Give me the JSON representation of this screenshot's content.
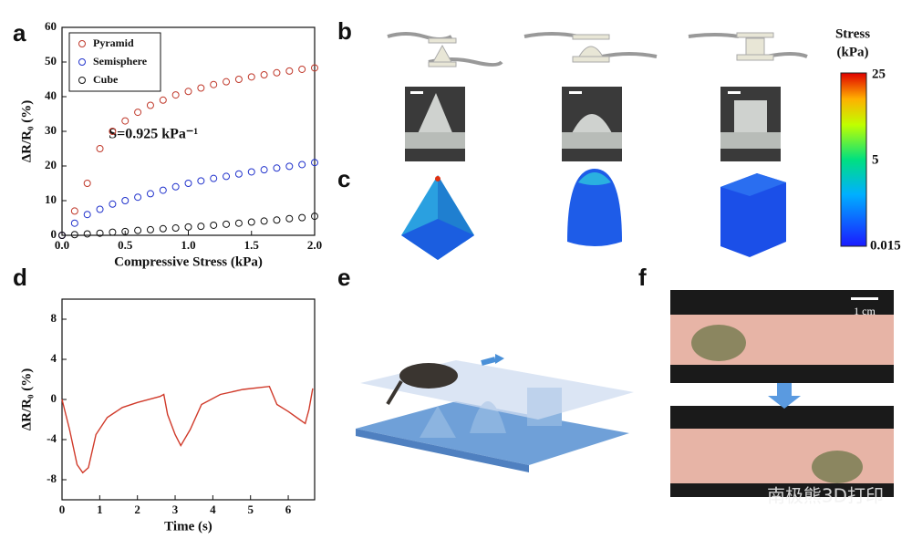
{
  "chart_data": [
    {
      "type": "scatter",
      "xlabel": "Compressive Stress (kPa)",
      "ylabel": "ΔR/R₀ (%)",
      "annotation": "S=0.925 kPa⁻¹",
      "x": [
        0,
        0.1,
        0.2,
        0.3,
        0.4,
        0.5,
        0.6,
        0.7,
        0.8,
        0.9,
        1.0,
        1.1,
        1.2,
        1.3,
        1.4,
        1.5,
        1.6,
        1.7,
        1.8,
        1.9,
        2.0
      ],
      "series": [
        {
          "name": "Pyramid",
          "color": "#c0392b",
          "values": [
            0,
            7,
            15,
            25,
            30,
            33,
            35.5,
            37.5,
            39,
            40.5,
            41.5,
            42.5,
            43.5,
            44.3,
            45,
            45.7,
            46.3,
            46.9,
            47.4,
            47.9,
            48.3
          ]
        },
        {
          "name": "Semisphere",
          "color": "#2233cc",
          "values": [
            0,
            3.5,
            6,
            7.5,
            9,
            10,
            11,
            12,
            13,
            14,
            15,
            15.7,
            16.4,
            17,
            17.7,
            18.3,
            18.9,
            19.4,
            19.9,
            20.4,
            21
          ]
        },
        {
          "name": "Cube",
          "color": "#111111",
          "values": [
            0,
            0.2,
            0.4,
            0.6,
            0.9,
            1.1,
            1.4,
            1.6,
            1.9,
            2.1,
            2.4,
            2.6,
            2.9,
            3.2,
            3.5,
            3.8,
            4.1,
            4.4,
            4.8,
            5.1,
            5.5
          ]
        }
      ],
      "xlim": [
        0,
        2
      ],
      "xticks": [
        {
          "value": 0,
          "label": "0.0"
        },
        0.5,
        {
          "value": 1,
          "label": "1.0"
        },
        1.5,
        {
          "value": 2,
          "label": "2.0"
        }
      ],
      "ylim": [
        0,
        60
      ],
      "yticks": [
        0,
        10,
        20,
        30,
        40,
        50,
        60
      ],
      "legend": "upper left"
    },
    {
      "type": "line",
      "xlabel": "Time (s)",
      "ylabel": "ΔR/R₀ (%)",
      "x": [
        0,
        0.2,
        0.4,
        0.55,
        0.7,
        0.9,
        1.2,
        1.6,
        2.0,
        2.6,
        2.7,
        2.8,
        3.0,
        3.15,
        3.4,
        3.7,
        4.2,
        4.8,
        5.5,
        5.7,
        6.0,
        6.3,
        6.45,
        6.55,
        6.65
      ],
      "series": [
        {
          "name": null,
          "color": "#d03a2a",
          "values": [
            0,
            -3,
            -6.5,
            -7.3,
            -6.8,
            -3.5,
            -1.8,
            -0.8,
            -0.3,
            0.3,
            0.5,
            -1.5,
            -3.5,
            -4.6,
            -3,
            -0.5,
            0.5,
            1,
            1.3,
            -0.5,
            -1.2,
            -2,
            -2.4,
            -1,
            1.1
          ]
        }
      ],
      "xlim": [
        0,
        6.7
      ],
      "xticks": [
        0,
        1,
        2,
        3,
        4,
        5,
        6
      ],
      "ylim": [
        -10,
        10
      ],
      "yticks": [
        -8,
        -4,
        0,
        4,
        8
      ]
    }
  ],
  "panel_labels": [
    "a",
    "b",
    "c",
    "d",
    "e",
    "f"
  ],
  "colorbar": {
    "title": [
      "Stress",
      "(kPa)"
    ],
    "labels": [
      "25",
      "5",
      "0.015"
    ]
  },
  "scale_bar": "1 cm",
  "watermark": "南极熊3D打印"
}
